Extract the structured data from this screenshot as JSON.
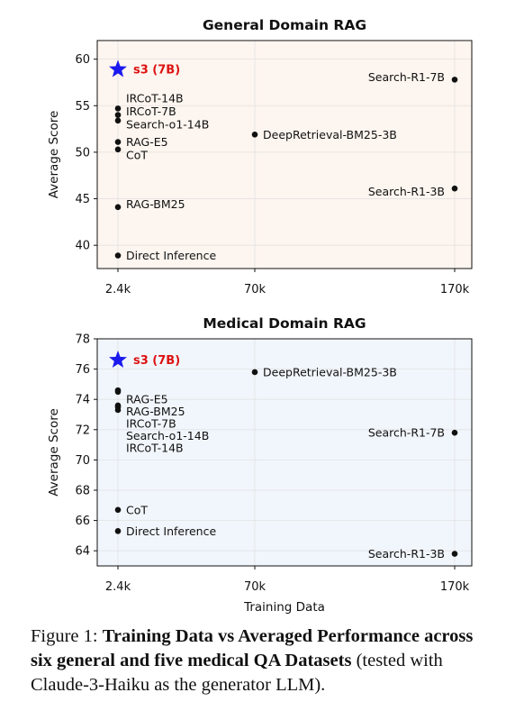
{
  "chart_data": [
    {
      "type": "scatter",
      "title": "General Domain RAG",
      "ylabel": "Average Score",
      "xlabel": "",
      "xticks": [
        "2.4k",
        "70k",
        "170k"
      ],
      "ylim": [
        37.5,
        62
      ],
      "yticks": [
        40,
        45,
        50,
        55,
        60
      ],
      "background": "#fdf5ef",
      "grid": true,
      "points": [
        {
          "label": "s3 (7B)",
          "x": "2.4k",
          "y": 58.9,
          "highlight": true,
          "label_side": "right"
        },
        {
          "label": "IRCoT-14B",
          "x": "2.4k",
          "y": 54.7,
          "label_side": "right",
          "label_y": 55.8
        },
        {
          "label": "IRCoT-7B",
          "x": "2.4k",
          "y": 54.0,
          "label_side": "right",
          "label_y": 54.4
        },
        {
          "label": "Search-o1-14B",
          "x": "2.4k",
          "y": 53.4,
          "label_side": "right",
          "label_y": 53.0
        },
        {
          "label": "RAG-E5",
          "x": "2.4k",
          "y": 51.1,
          "label_side": "right",
          "label_y": 51.1
        },
        {
          "label": "CoT",
          "x": "2.4k",
          "y": 50.3,
          "label_side": "right",
          "label_y": 49.7
        },
        {
          "label": "RAG-BM25",
          "x": "2.4k",
          "y": 44.1,
          "label_side": "right",
          "label_y": 44.4
        },
        {
          "label": "Direct Inference",
          "x": "2.4k",
          "y": 38.9,
          "label_side": "right"
        },
        {
          "label": "DeepRetrieval-BM25-3B",
          "x": "70k",
          "y": 51.9,
          "label_side": "right"
        },
        {
          "label": "Search-R1-7B",
          "x": "170k",
          "y": 57.8,
          "label_side": "left",
          "label_y": 58.1
        },
        {
          "label": "Search-R1-3B",
          "x": "170k",
          "y": 46.1,
          "label_side": "left",
          "label_y": 45.8
        }
      ]
    },
    {
      "type": "scatter",
      "title": "Medical Domain RAG",
      "ylabel": "Average Score",
      "xlabel": "Training Data",
      "xticks": [
        "2.4k",
        "70k",
        "170k"
      ],
      "ylim": [
        63.0,
        78.0
      ],
      "yticks": [
        64,
        66,
        68,
        70,
        72,
        74,
        76,
        78
      ],
      "background": "#f1f6fc",
      "grid": true,
      "points": [
        {
          "label": "s3 (7B)",
          "x": "2.4k",
          "y": 76.6,
          "highlight": true,
          "label_side": "right"
        },
        {
          "label": "RAG-E5",
          "x": "2.4k",
          "y": 74.6,
          "label_side": "right",
          "label_y": 74.0
        },
        {
          "label": "RAG-BM25",
          "x": "2.4k",
          "y": 74.5,
          "label_side": "right",
          "label_y": 73.2
        },
        {
          "label": "IRCoT-7B",
          "x": "2.4k",
          "y": 73.6,
          "label_side": "right",
          "label_y": 72.4
        },
        {
          "label": "Search-o1-14B",
          "x": "2.4k",
          "y": 73.5,
          "label_side": "right",
          "label_y": 71.6
        },
        {
          "label": "IRCoT-14B",
          "x": "2.4k",
          "y": 73.3,
          "label_side": "right",
          "label_y": 70.8
        },
        {
          "label": "CoT",
          "x": "2.4k",
          "y": 66.7,
          "label_side": "right"
        },
        {
          "label": "Direct Inference",
          "x": "2.4k",
          "y": 65.3,
          "label_side": "right"
        },
        {
          "label": "DeepRetrieval-BM25-3B",
          "x": "70k",
          "y": 75.8,
          "label_side": "right"
        },
        {
          "label": "Search-R1-7B",
          "x": "170k",
          "y": 71.8,
          "label_side": "left"
        },
        {
          "label": "Search-R1-3B",
          "x": "170k",
          "y": 63.8,
          "label_side": "left"
        }
      ]
    }
  ],
  "caption": {
    "prefix": "Figure 1: ",
    "bold": "Training Data vs Averaged Performance across six general and five medical QA Datasets",
    "rest": " (tested with Claude-3-Haiku as the generator LLM)."
  },
  "colors": {
    "highlight_star": "#1a1aee",
    "highlight_label": "#dd1111",
    "point": "#111111",
    "grid": "#e2e2e2"
  }
}
